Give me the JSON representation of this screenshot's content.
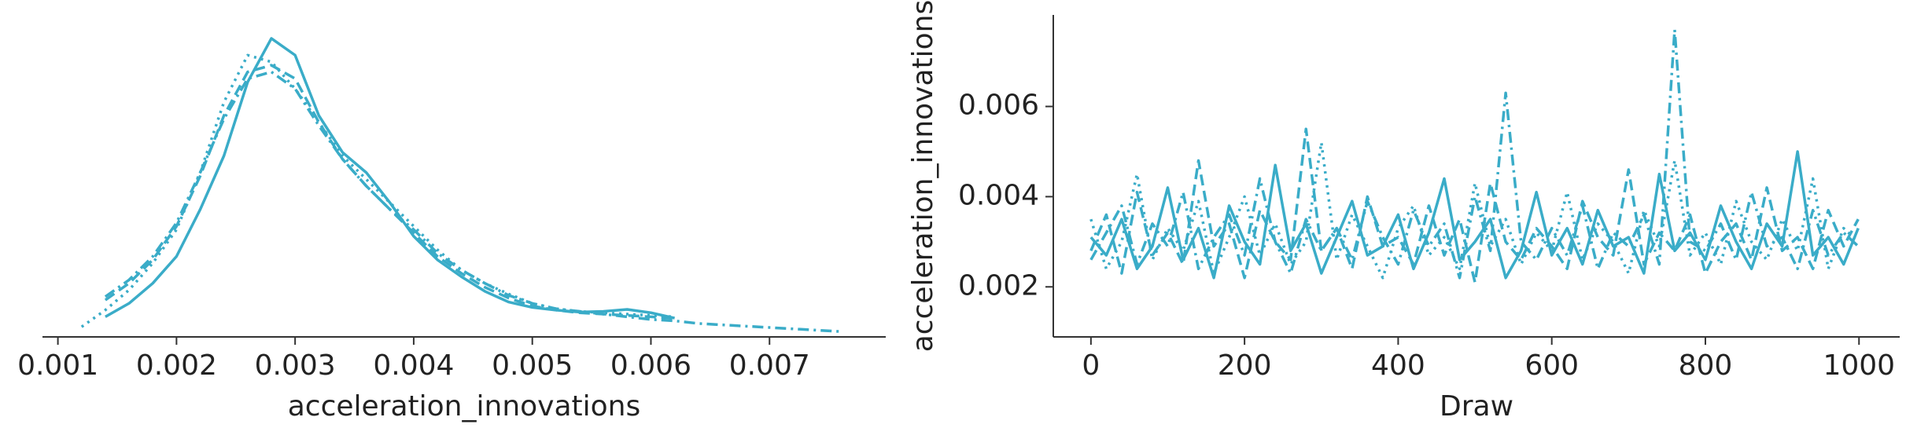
{
  "chart_data": [
    {
      "type": "line",
      "color": "#3aacc8",
      "xlabel": "acceleration_innovations",
      "x": [
        0.0012,
        0.0014,
        0.0016,
        0.0018,
        0.002,
        0.0022,
        0.0024,
        0.0026,
        0.0028,
        0.003,
        0.0032,
        0.0034,
        0.0036,
        0.0038,
        0.004,
        0.0042,
        0.0044,
        0.0046,
        0.0048,
        0.005,
        0.0052,
        0.0054,
        0.0056,
        0.0058,
        0.006,
        0.0062,
        0.0064,
        0.0066,
        0.0068,
        0.007,
        0.0072,
        0.0074,
        0.0076
      ],
      "series": [
        {
          "linestyle": "solid",
          "color": "#3aacc8",
          "values": [
            null,
            30,
            50,
            80,
            120,
            190,
            270,
            380,
            445,
            420,
            330,
            275,
            245,
            200,
            150,
            115,
            90,
            68,
            52,
            44,
            40,
            37,
            38,
            41,
            36,
            28,
            null,
            null,
            null,
            null,
            null,
            null,
            null
          ]
        },
        {
          "linestyle": "dashed",
          "color": "#3aacc8",
          "values": [
            null,
            55,
            80,
            115,
            165,
            240,
            330,
            395,
            405,
            385,
            320,
            265,
            225,
            190,
            155,
            120,
            95,
            74,
            58,
            46,
            40,
            36,
            34,
            32,
            30,
            28,
            null,
            null,
            null,
            null,
            null,
            null,
            null
          ]
        },
        {
          "linestyle": "dotted",
          "color": "#3aacc8",
          "values": [
            15,
            40,
            70,
            110,
            160,
            245,
            350,
            420,
            410,
            370,
            320,
            270,
            235,
            200,
            165,
            130,
            100,
            80,
            64,
            50,
            42,
            38,
            36,
            34,
            32,
            30,
            null,
            null,
            null,
            null,
            null,
            null,
            null
          ]
        },
        {
          "linestyle": "dashdot",
          "color": "#3aacc8",
          "values": [
            null,
            60,
            85,
            120,
            170,
            245,
            325,
            385,
            395,
            370,
            315,
            265,
            225,
            190,
            160,
            125,
            100,
            80,
            62,
            50,
            42,
            38,
            34,
            30,
            26,
            24,
            20,
            18,
            16,
            14,
            12,
            10,
            8
          ]
        }
      ],
      "xlim": [
        0.00087,
        0.00798
      ],
      "ylim": [
        0,
        480
      ],
      "xticks": [
        0.001,
        0.002,
        0.003,
        0.004,
        0.005,
        0.006,
        0.007
      ]
    },
    {
      "type": "line",
      "color": "#3aacc8",
      "xlabel": "Draw",
      "ylabel": "acceleration_innovations",
      "x": [
        0,
        20,
        40,
        60,
        80,
        100,
        120,
        140,
        160,
        180,
        200,
        220,
        240,
        260,
        280,
        300,
        320,
        340,
        360,
        380,
        400,
        420,
        440,
        460,
        480,
        500,
        520,
        540,
        560,
        580,
        600,
        620,
        640,
        660,
        680,
        700,
        720,
        740,
        760,
        780,
        800,
        820,
        840,
        860,
        880,
        900,
        920,
        940,
        960,
        980,
        999
      ],
      "series": [
        {
          "linestyle": "solid",
          "color": "#3aacc8",
          "values": [
            0.0031,
            0.0027,
            0.0035,
            0.0024,
            0.0029,
            0.0042,
            0.0026,
            0.0033,
            0.0022,
            0.0038,
            0.003,
            0.0025,
            0.0047,
            0.0028,
            0.0034,
            0.0023,
            0.0031,
            0.0039,
            0.0027,
            0.0029,
            0.0036,
            0.0024,
            0.0032,
            0.0044,
            0.0026,
            0.003,
            0.0035,
            0.0022,
            0.0028,
            0.0041,
            0.0027,
            0.0033,
            0.0025,
            0.0037,
            0.0029,
            0.0031,
            0.0023,
            0.0045,
            0.0028,
            0.0032,
            0.0026,
            0.0038,
            0.003,
            0.0024,
            0.0034,
            0.0029,
            0.005,
            0.0027,
            0.0031,
            0.0025,
            0.0033
          ]
        },
        {
          "linestyle": "dashed",
          "color": "#3aacc8",
          "values": [
            0.0028,
            0.0036,
            0.0023,
            0.0041,
            0.0027,
            0.0032,
            0.0025,
            0.0048,
            0.0029,
            0.0034,
            0.0022,
            0.0037,
            0.003,
            0.0026,
            0.0055,
            0.0028,
            0.0033,
            0.0024,
            0.004,
            0.0029,
            0.0031,
            0.0025,
            0.0038,
            0.0027,
            0.0035,
            0.0021,
            0.0043,
            0.003,
            0.0026,
            0.0033,
            0.0029,
            0.0024,
            0.0039,
            0.0031,
            0.0027,
            0.0046,
            0.0025,
            0.0032,
            0.0028,
            0.0036,
            0.0023,
            0.003,
            0.0034,
            0.0026,
            0.0042,
            0.0028,
            0.0031,
            0.0024,
            0.0037,
            0.0029,
            0.0035
          ]
        },
        {
          "linestyle": "dotted",
          "color": "#3aacc8",
          "values": [
            0.0035,
            0.0024,
            0.003,
            0.0045,
            0.0026,
            0.0033,
            0.0028,
            0.0039,
            0.0023,
            0.0031,
            0.004,
            0.0027,
            0.0034,
            0.0025,
            0.003,
            0.0052,
            0.0026,
            0.0036,
            0.0029,
            0.0022,
            0.0033,
            0.0038,
            0.0027,
            0.0031,
            0.0024,
            0.0043,
            0.0029,
            0.0035,
            0.0025,
            0.0032,
            0.0028,
            0.0041,
            0.0026,
            0.0034,
            0.003,
            0.0023,
            0.0037,
            0.0029,
            0.0048,
            0.0027,
            0.0032,
            0.0025,
            0.0039,
            0.003,
            0.0026,
            0.0035,
            0.0028,
            0.0044,
            0.0024,
            0.0033,
            0.003
          ]
        },
        {
          "linestyle": "dashdot",
          "color": "#3aacc8",
          "values": [
            0.0026,
            0.0032,
            0.0038,
            0.0025,
            0.0034,
            0.0029,
            0.0041,
            0.0024,
            0.0031,
            0.0036,
            0.0027,
            0.0044,
            0.003,
            0.0023,
            0.0035,
            0.0028,
            0.0033,
            0.0026,
            0.0039,
            0.0031,
            0.0025,
            0.0037,
            0.0029,
            0.0034,
            0.0022,
            0.004,
            0.0028,
            0.0063,
            0.003,
            0.0026,
            0.0033,
            0.0027,
            0.0038,
            0.0024,
            0.0032,
            0.0029,
            0.0036,
            0.0025,
            0.0077,
            0.003,
            0.0028,
            0.0034,
            0.0026,
            0.0041,
            0.0029,
            0.0031,
            0.0024,
            0.0037,
            0.0027,
            0.0032,
            0.0029
          ]
        }
      ],
      "xlim": [
        -49,
        1053
      ],
      "ylim": [
        0.00089,
        0.00803
      ],
      "xticks": [
        0,
        200,
        400,
        600,
        800,
        1000
      ],
      "yticks": [
        0.002,
        0.004,
        0.006
      ]
    }
  ]
}
